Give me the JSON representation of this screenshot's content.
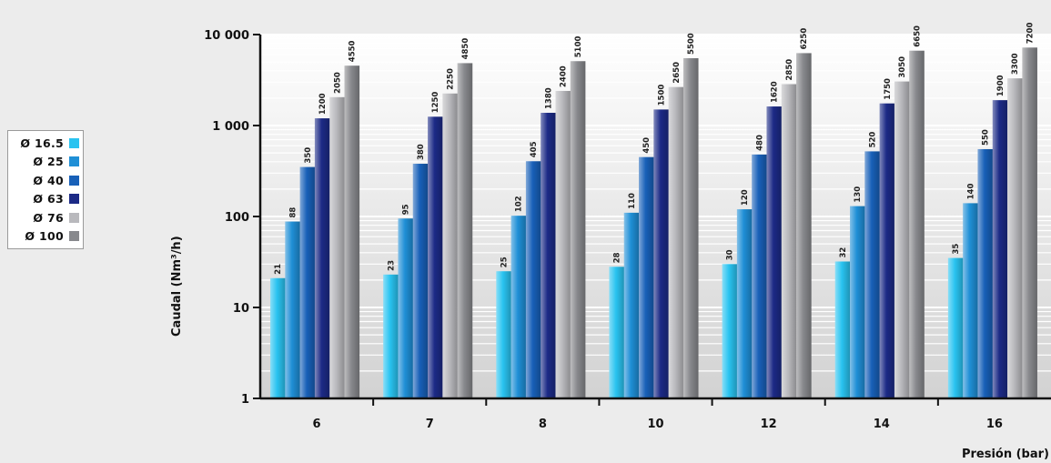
{
  "chart_data": {
    "type": "bar",
    "title": "",
    "xlabel": "Presión (bar)",
    "ylabel": "Caudal (Nm³/h)",
    "yscale": "log",
    "ylim": [
      1,
      10000
    ],
    "ytick_labels": [
      "1",
      "10",
      "100",
      "1 000",
      "10 000"
    ],
    "ytick_values": [
      1,
      10,
      100,
      1000,
      10000
    ],
    "categories": [
      "6",
      "7",
      "8",
      "10",
      "12",
      "14",
      "16"
    ],
    "legend_position": "left",
    "series": [
      {
        "name": "Ø 16.5",
        "color": "#29c3f0",
        "values": [
          21,
          23,
          25,
          28,
          30,
          32,
          35
        ]
      },
      {
        "name": "Ø 25",
        "color": "#1f8fd6",
        "values": [
          88,
          95,
          102,
          110,
          120,
          130,
          140
        ]
      },
      {
        "name": "Ø 40",
        "color": "#1860b8",
        "values": [
          350,
          380,
          405,
          450,
          480,
          520,
          550
        ]
      },
      {
        "name": "Ø 63",
        "color": "#1c2a86",
        "values": [
          1200,
          1250,
          1380,
          1500,
          1620,
          1750,
          1900
        ]
      },
      {
        "name": "Ø 76",
        "color": "#b9b9bd",
        "values": [
          2050,
          2250,
          2400,
          2650,
          2850,
          3050,
          3300
        ]
      },
      {
        "name": "Ø 100",
        "color": "#88898d",
        "values": [
          4550,
          4850,
          5100,
          5500,
          6250,
          6650,
          7200
        ]
      }
    ],
    "data_labels": [
      [
        "21",
        "23",
        "25",
        "28",
        "30",
        "32",
        "35"
      ],
      [
        "88",
        "95",
        "102",
        "110",
        "120",
        "130",
        "140"
      ],
      [
        "350",
        "380",
        "405",
        "450",
        "480",
        "520",
        "550"
      ],
      [
        "1200",
        "1250",
        "1380",
        "1500",
        "1620",
        "1750",
        "1900"
      ],
      [
        "2050",
        "2250",
        "2400",
        "2650",
        "2850",
        "3050",
        "3300"
      ],
      [
        "4550",
        "4850",
        "5100",
        "5500",
        "6250",
        "6650",
        "7200"
      ]
    ]
  }
}
